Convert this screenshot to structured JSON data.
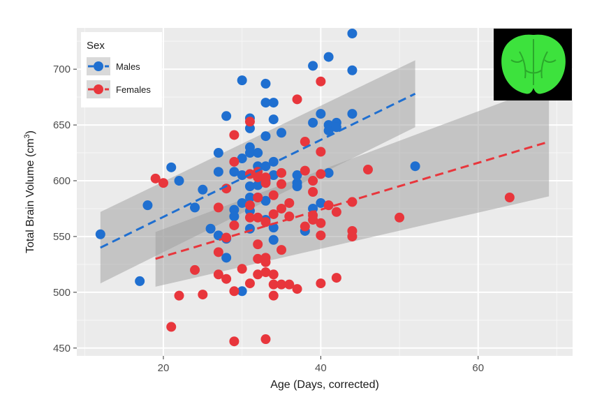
{
  "chart_data": {
    "type": "scatter",
    "xlabel": "Age (Days, corrected)",
    "ylabel": "Total Brain Volume (cm",
    "ylabel_sup": "3",
    "ylabel_end": ")",
    "xlim": [
      9,
      72
    ],
    "ylim": [
      443,
      737
    ],
    "x_ticks": [
      20,
      40,
      60
    ],
    "y_ticks": [
      450,
      500,
      550,
      600,
      650,
      700
    ],
    "grid": true,
    "legend": {
      "title": "Sex",
      "position": "top-left"
    },
    "colors": {
      "Males": "#1f6fd0",
      "Females": "#e8363c",
      "ribbon": "#9e9e9e",
      "panel": "#ebebeb",
      "inset_bg": "#000000",
      "inset_brain": "#3de23d"
    },
    "inset": "brain-scan-thumbnail",
    "series": [
      {
        "name": "Males",
        "color": "#1f6fd0",
        "trend": {
          "x": [
            12,
            52
          ],
          "y": [
            540,
            678
          ]
        },
        "band": {
          "x": [
            12,
            52
          ],
          "upper": [
            572,
            708
          ],
          "lower": [
            508,
            648
          ]
        },
        "points": [
          [
            12,
            552
          ],
          [
            17,
            510
          ],
          [
            18,
            578
          ],
          [
            21,
            612
          ],
          [
            22,
            600
          ],
          [
            24,
            576
          ],
          [
            25,
            592
          ],
          [
            26,
            557
          ],
          [
            27,
            625
          ],
          [
            27,
            551
          ],
          [
            27,
            608
          ],
          [
            28,
            658
          ],
          [
            28,
            531
          ],
          [
            28,
            548
          ],
          [
            29,
            574
          ],
          [
            29,
            568
          ],
          [
            29,
            608
          ],
          [
            30,
            690
          ],
          [
            30,
            620
          ],
          [
            30,
            605
          ],
          [
            30,
            580
          ],
          [
            30,
            501
          ],
          [
            31,
            656
          ],
          [
            31,
            647
          ],
          [
            31,
            630
          ],
          [
            31,
            625
          ],
          [
            31,
            595
          ],
          [
            31,
            585
          ],
          [
            31,
            573
          ],
          [
            31,
            557
          ],
          [
            32,
            625
          ],
          [
            32,
            613
          ],
          [
            32,
            596
          ],
          [
            32,
            585
          ],
          [
            33,
            687
          ],
          [
            33,
            670
          ],
          [
            33,
            640
          ],
          [
            33,
            613
          ],
          [
            33,
            600
          ],
          [
            33,
            582
          ],
          [
            33,
            565
          ],
          [
            34,
            670
          ],
          [
            34,
            655
          ],
          [
            34,
            617
          ],
          [
            34,
            605
          ],
          [
            34,
            558
          ],
          [
            34,
            547
          ],
          [
            35,
            643
          ],
          [
            37,
            605
          ],
          [
            37,
            598
          ],
          [
            37,
            595
          ],
          [
            38,
            555
          ],
          [
            39,
            703
          ],
          [
            39,
            652
          ],
          [
            39,
            575
          ],
          [
            40,
            660
          ],
          [
            40,
            580
          ],
          [
            41,
            711
          ],
          [
            41,
            650
          ],
          [
            41,
            645
          ],
          [
            41,
            607
          ],
          [
            42,
            652
          ],
          [
            42,
            648
          ],
          [
            44,
            732
          ],
          [
            44,
            699
          ],
          [
            44,
            660
          ],
          [
            52,
            613
          ]
        ]
      },
      {
        "name": "Females",
        "color": "#e8363c",
        "trend": {
          "x": [
            19,
            69
          ],
          "y": [
            530,
            635
          ]
        },
        "band": {
          "x": [
            19,
            69
          ],
          "upper": [
            554,
            686
          ],
          "lower": [
            505,
            586
          ]
        },
        "points": [
          [
            19,
            602
          ],
          [
            20,
            598
          ],
          [
            21,
            469
          ],
          [
            22,
            497
          ],
          [
            24,
            520
          ],
          [
            25,
            498
          ],
          [
            27,
            576
          ],
          [
            27,
            536
          ],
          [
            27,
            516
          ],
          [
            28,
            593
          ],
          [
            28,
            549
          ],
          [
            28,
            512
          ],
          [
            29,
            641
          ],
          [
            29,
            617
          ],
          [
            29,
            560
          ],
          [
            29,
            501
          ],
          [
            29,
            456
          ],
          [
            30,
            521
          ],
          [
            31,
            653
          ],
          [
            31,
            606
          ],
          [
            31,
            578
          ],
          [
            31,
            567
          ],
          [
            31,
            508
          ],
          [
            32,
            608
          ],
          [
            32,
            603
          ],
          [
            32,
            585
          ],
          [
            32,
            567
          ],
          [
            32,
            543
          ],
          [
            32,
            530
          ],
          [
            32,
            516
          ],
          [
            33,
            603
          ],
          [
            33,
            598
          ],
          [
            33,
            563
          ],
          [
            33,
            531
          ],
          [
            33,
            527
          ],
          [
            33,
            518
          ],
          [
            33,
            458
          ],
          [
            34,
            587
          ],
          [
            34,
            570
          ],
          [
            34,
            516
          ],
          [
            34,
            507
          ],
          [
            34,
            497
          ],
          [
            35,
            607
          ],
          [
            35,
            597
          ],
          [
            35,
            575
          ],
          [
            35,
            538
          ],
          [
            35,
            507
          ],
          [
            36,
            580
          ],
          [
            36,
            568
          ],
          [
            36,
            507
          ],
          [
            37,
            673
          ],
          [
            37,
            503
          ],
          [
            38,
            635
          ],
          [
            38,
            609
          ],
          [
            38,
            559
          ],
          [
            39,
            600
          ],
          [
            39,
            590
          ],
          [
            39,
            569
          ],
          [
            39,
            565
          ],
          [
            40,
            689
          ],
          [
            40,
            626
          ],
          [
            40,
            606
          ],
          [
            40,
            562
          ],
          [
            40,
            551
          ],
          [
            40,
            508
          ],
          [
            41,
            578
          ],
          [
            42,
            572
          ],
          [
            42,
            513
          ],
          [
            44,
            581
          ],
          [
            44,
            555
          ],
          [
            44,
            550
          ],
          [
            46,
            610
          ],
          [
            50,
            567
          ],
          [
            64,
            585
          ]
        ]
      }
    ]
  }
}
